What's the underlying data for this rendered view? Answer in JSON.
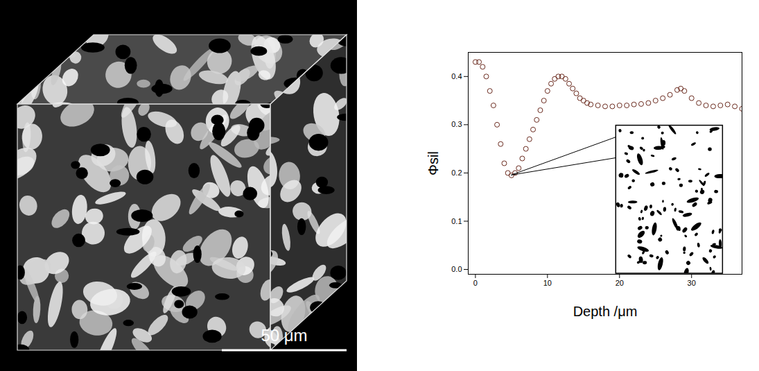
{
  "chart_data": {
    "type": "scatter",
    "x_label": "Depth /μm",
    "y_label": "Φsil",
    "x": [
      0,
      0.5,
      1,
      1.5,
      2,
      2.5,
      3,
      3.5,
      4,
      4.5,
      5,
      5.5,
      6,
      6.5,
      7,
      7.5,
      8,
      8.5,
      9,
      9.5,
      10,
      10.5,
      11,
      11.5,
      12,
      12.5,
      13,
      13.5,
      14,
      14.5,
      15,
      15.5,
      16,
      17,
      18,
      19,
      20,
      21,
      22,
      23,
      24,
      25,
      26,
      27,
      28,
      28.5,
      29,
      30,
      31,
      32,
      33,
      34,
      35,
      36,
      37
    ],
    "values": [
      0.43,
      0.43,
      0.42,
      0.4,
      0.37,
      0.34,
      0.3,
      0.26,
      0.22,
      0.2,
      0.195,
      0.2,
      0.21,
      0.23,
      0.25,
      0.27,
      0.29,
      0.31,
      0.33,
      0.35,
      0.37,
      0.385,
      0.395,
      0.4,
      0.4,
      0.395,
      0.385,
      0.375,
      0.365,
      0.355,
      0.35,
      0.345,
      0.342,
      0.34,
      0.338,
      0.338,
      0.34,
      0.34,
      0.342,
      0.343,
      0.345,
      0.35,
      0.355,
      0.362,
      0.372,
      0.375,
      0.37,
      0.355,
      0.345,
      0.34,
      0.338,
      0.34,
      0.342,
      0.338,
      0.333
    ],
    "color": "#6b2b1f",
    "marker": "circle",
    "xlim": [
      -1,
      37
    ],
    "ylim": [
      -0.01,
      0.45
    ],
    "xticks": [
      0,
      10,
      20,
      30
    ],
    "yticks": [
      {
        "value": 0,
        "label": "0.0"
      },
      0.1,
      0.2,
      0.3,
      0.4
    ]
  },
  "image_panel": {
    "scale_bar_label": "50 μm"
  }
}
